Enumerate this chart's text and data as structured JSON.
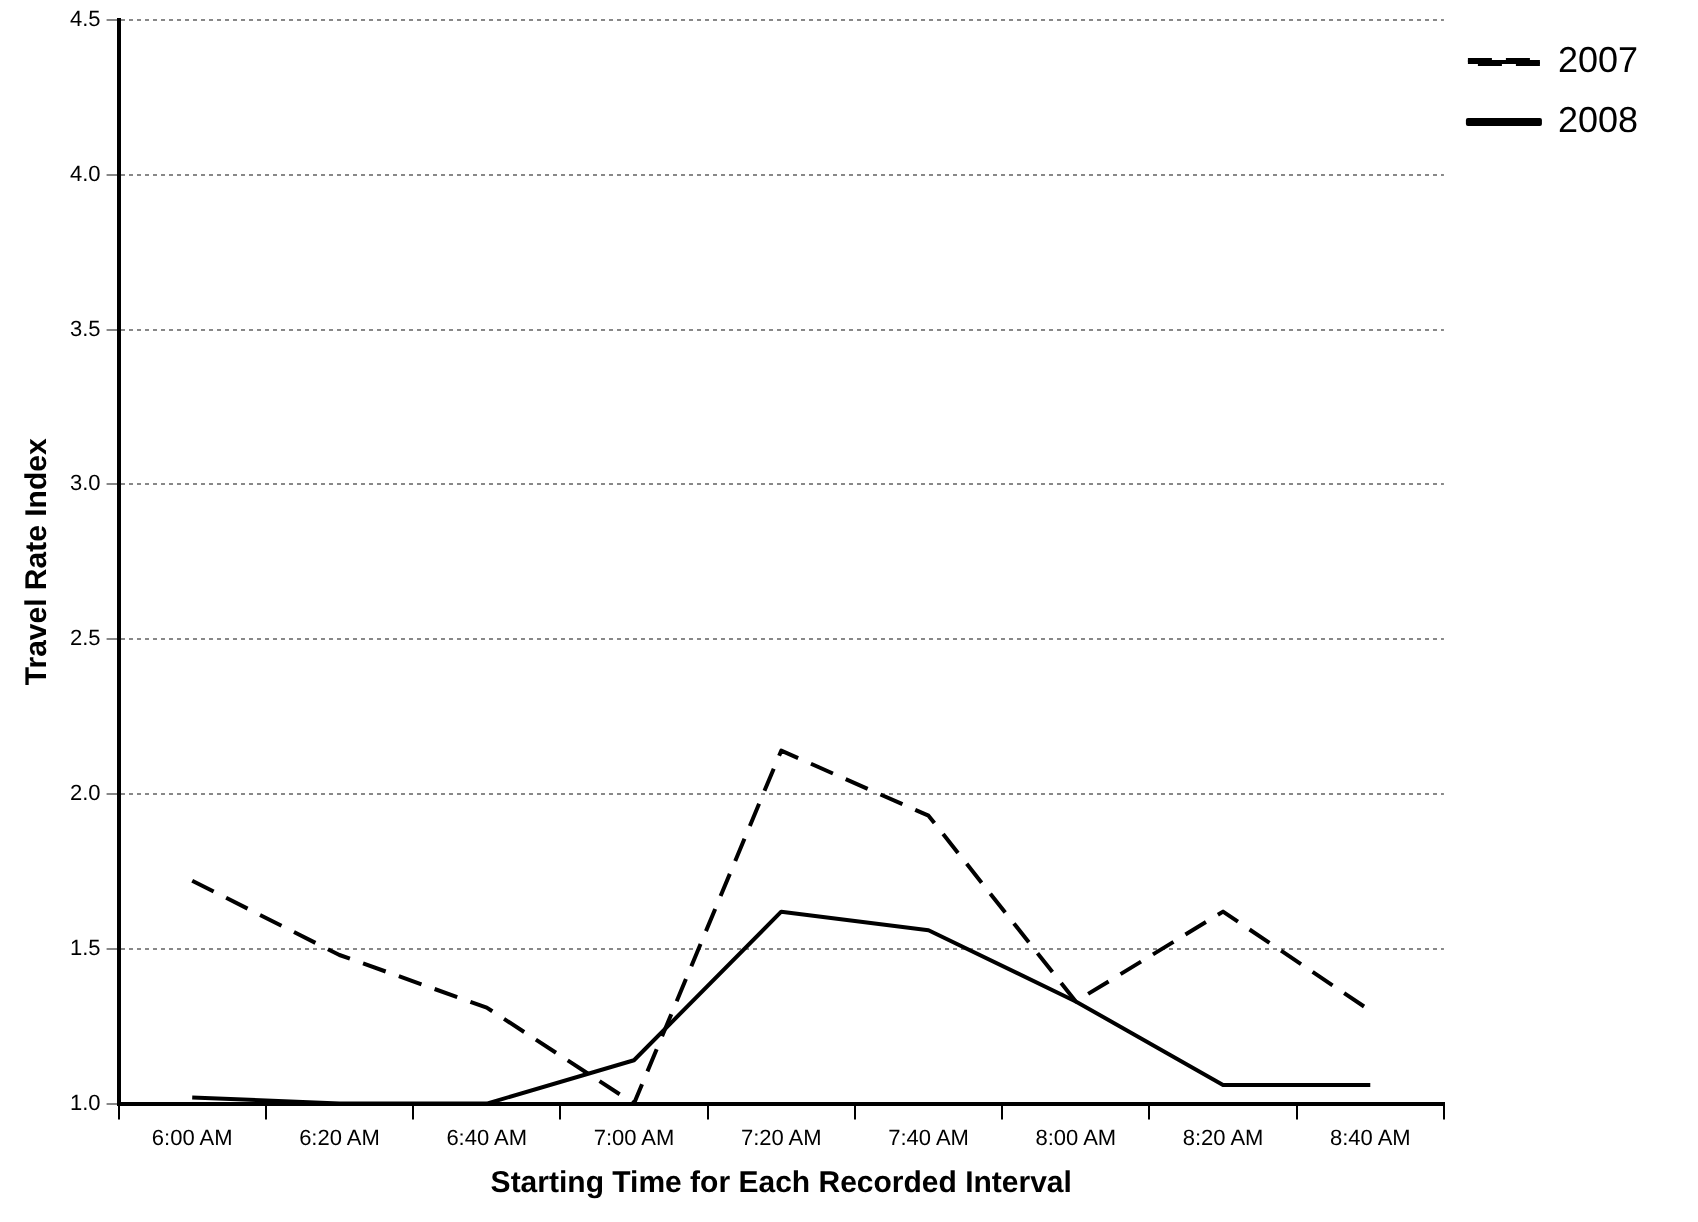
{
  "chart_data": {
    "type": "line",
    "xlabel": "Starting Time for Each Recorded Interval",
    "ylabel": "Travel Rate Index",
    "categories": [
      "6:00 AM",
      "6:20 AM",
      "6:40 AM",
      "7:00 AM",
      "7:20 AM",
      "7:40 AM",
      "8:00 AM",
      "8:20 AM",
      "8:40 AM"
    ],
    "series": [
      {
        "name": "2007",
        "color": "#000000",
        "line_style": "dashed",
        "values": [
          1.72,
          1.48,
          1.31,
          1.0,
          2.14,
          1.93,
          1.33,
          1.62,
          1.3
        ]
      },
      {
        "name": "2008",
        "color": "#000000",
        "line_style": "solid",
        "values": [
          1.02,
          1.0,
          1.0,
          1.14,
          1.62,
          1.56,
          1.33,
          1.06,
          1.06
        ]
      }
    ],
    "ylim": [
      1.0,
      4.5
    ],
    "yticks": [
      {
        "value": 1.0,
        "label": "1.0"
      },
      {
        "value": 1.5,
        "label": "1.5"
      },
      {
        "value": 2.0,
        "label": "2.0"
      },
      {
        "value": 2.5,
        "label": "2.5"
      },
      {
        "value": 3.0,
        "label": "3.0"
      },
      {
        "value": 3.5,
        "label": "3.5"
      },
      {
        "value": 4.0,
        "label": "4.0"
      },
      {
        "value": 4.5,
        "label": "4.5"
      }
    ],
    "grid": "y",
    "legend": "top right",
    "marker": "none"
  }
}
